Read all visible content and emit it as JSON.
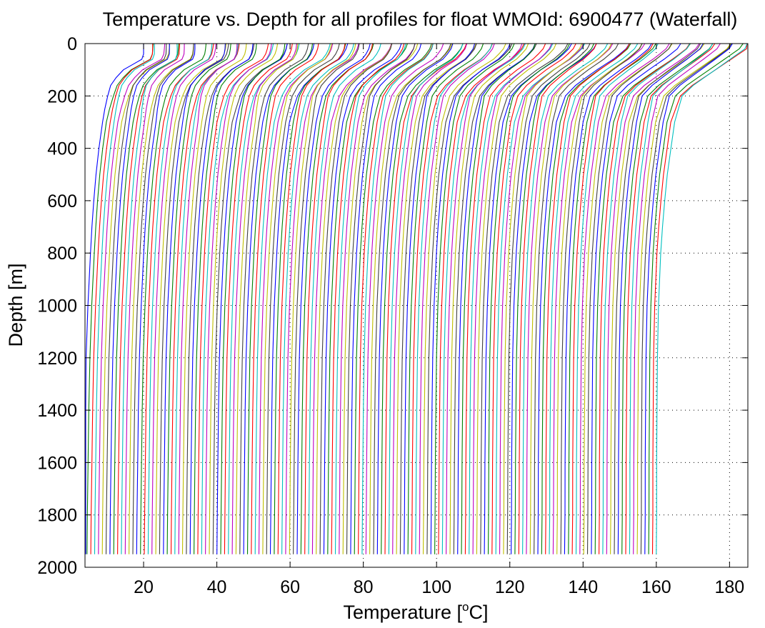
{
  "chart_data": {
    "type": "line",
    "title": "Temperature vs. Depth for all profiles for float WMOId: 6900477 (Waterfall)",
    "xlabel": {
      "pre": "Temperature [",
      "sup": "o",
      "post": "C]"
    },
    "ylabel": "Depth [m]",
    "xlim": [
      4,
      185
    ],
    "ylim": [
      0,
      2000
    ],
    "y_reversed": true,
    "grid": "dotted",
    "xticks": [
      20,
      40,
      60,
      80,
      100,
      120,
      140,
      160,
      180
    ],
    "yticks": [
      0,
      200,
      400,
      600,
      800,
      1000,
      1200,
      1400,
      1600,
      1800,
      2000
    ],
    "colors": [
      "#0000ff",
      "#008000",
      "#ff0000",
      "#00bfbf",
      "#bf00bf",
      "#bfbf00",
      "#404040"
    ],
    "profile_count": 151,
    "offset_per_profile": 1,
    "depths": [
      0,
      20,
      40,
      60,
      80,
      100,
      130,
      160,
      200,
      250,
      300,
      400,
      500,
      600,
      700,
      800,
      1000,
      1200,
      1400,
      1600,
      1800,
      1950
    ],
    "series": [
      {
        "name": "",
        "first_surface_temperature": 20,
        "temperature_profile": [
          20,
          20,
          20,
          19.5,
          17,
          14.5,
          12.5,
          11,
          10.2,
          9.4,
          8.8,
          7.8,
          7.0,
          6.4,
          5.9,
          5.5,
          4.8,
          4.3,
          4.0,
          3.8,
          3.6,
          3.5
        ]
      },
      {
        "name": "",
        "last_surface_temperature": 185,
        "temperature_profile": [
          185,
          184,
          182,
          180,
          178,
          176,
          173,
          170,
          167,
          166,
          165,
          164,
          163,
          162.3,
          161.7,
          161.2,
          160.6,
          160.3,
          160.2,
          160.1,
          160.1,
          160.0
        ]
      }
    ]
  }
}
